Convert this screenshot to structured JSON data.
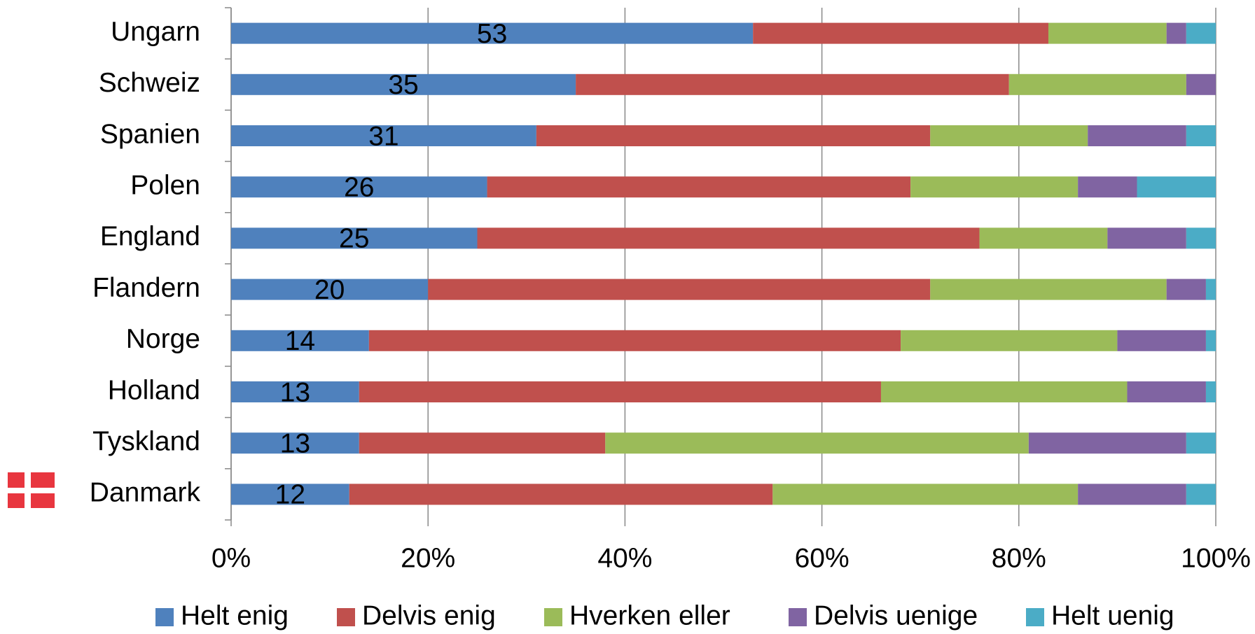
{
  "chart_data": {
    "type": "stacked_barh",
    "categories": [
      "Ungarn",
      "Schweiz",
      "Spanien",
      "Polen",
      "England",
      "Flandern",
      "Norge",
      "Holland",
      "Tyskland",
      "Danmark"
    ],
    "series": [
      {
        "name": "Helt enig",
        "color": "#4f81bd",
        "show_labels": true,
        "values": [
          53,
          35,
          31,
          26,
          25,
          20,
          14,
          13,
          13,
          12
        ]
      },
      {
        "name": "Delvis enig",
        "color": "#c0504d",
        "values": [
          30,
          44,
          40,
          43,
          51,
          51,
          54,
          53,
          25,
          43
        ]
      },
      {
        "name": "Hverken eller",
        "color": "#9bbb59",
        "values": [
          12,
          18,
          16,
          17,
          13,
          24,
          22,
          25,
          43,
          31
        ]
      },
      {
        "name": "Delvis uenige",
        "color": "#8064a2",
        "values": [
          2,
          3,
          10,
          6,
          8,
          4,
          9,
          8,
          16,
          11
        ]
      },
      {
        "name": "Helt uenig",
        "color": "#4bacc6",
        "values": [
          3,
          0,
          3,
          8,
          3,
          1,
          1,
          1,
          3,
          3
        ]
      }
    ],
    "xlim": [
      0,
      100
    ],
    "xticks": [
      {
        "value": 0,
        "label": "0%"
      },
      {
        "value": 20,
        "label": "20%"
      },
      {
        "value": 40,
        "label": "40%"
      },
      {
        "value": 60,
        "label": "60%"
      },
      {
        "value": 80,
        "label": "80%"
      },
      {
        "value": 100,
        "label": "100%"
      }
    ],
    "grid": true,
    "legend": "bottom"
  }
}
